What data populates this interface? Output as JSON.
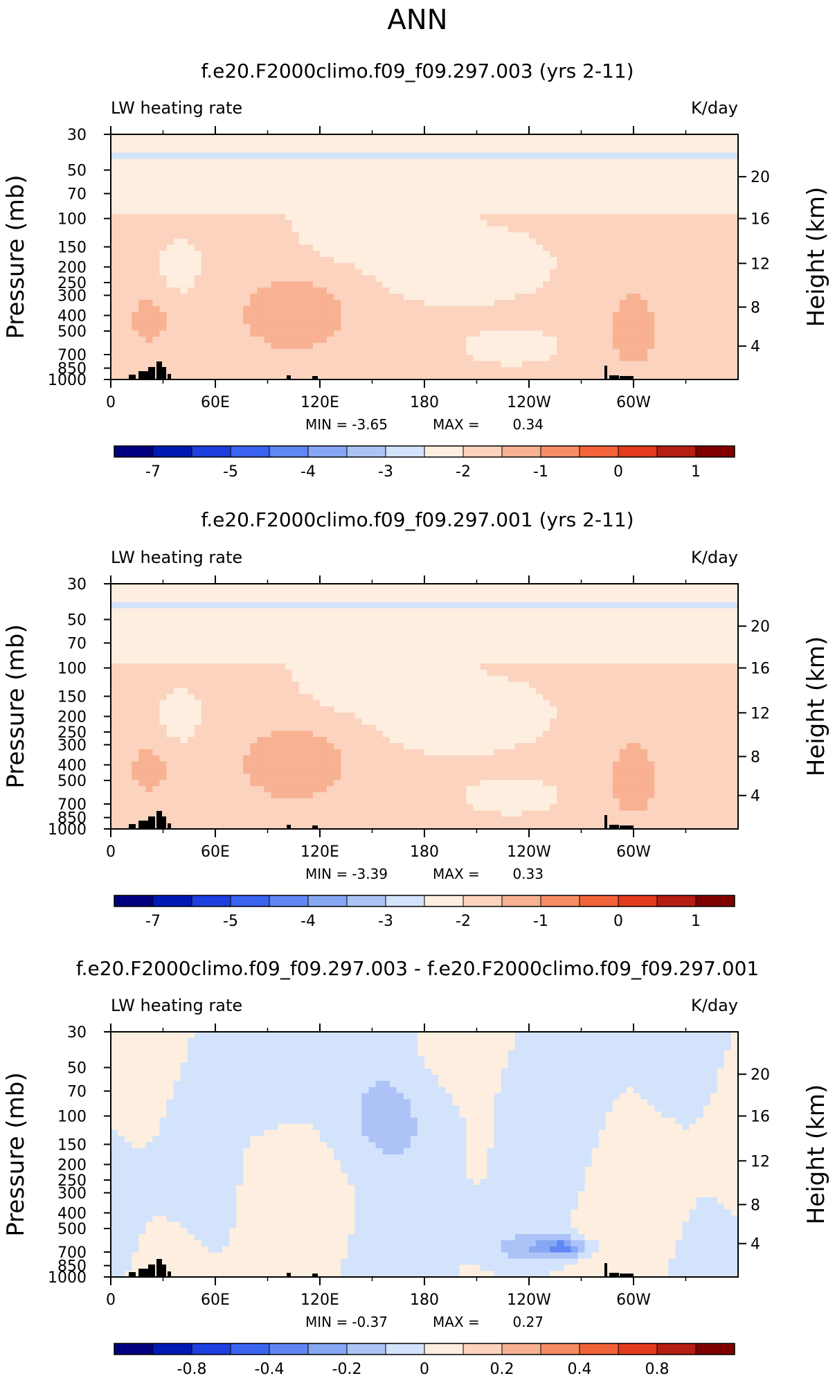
{
  "figure_title": "ANN",
  "colors": {
    "div": [
      "#000080",
      "#0019b3",
      "#1e3fe0",
      "#3a63f0",
      "#5f86f2",
      "#86a7f4",
      "#adc3f7",
      "#d2e3fb",
      "#fdeee0",
      "#fbd3be",
      "#f9b193",
      "#f68b64",
      "#f2633a",
      "#e33b1d",
      "#b51e12",
      "#800000"
    ]
  },
  "chart_data": [
    {
      "type": "contour",
      "title": "f.e20.F2000climo.f09_f09.297.003 (yrs 2-11)",
      "left_label": "LW heating rate",
      "right_label": "K/day",
      "ylabel": "Pressure (mb)",
      "ylabel_right": "Height (km)",
      "x_ticks": [
        "0",
        "60E",
        "120E",
        "180",
        "120W",
        "60W"
      ],
      "y_ticks": [
        "30",
        "50",
        "70",
        "100",
        "150",
        "200",
        "250",
        "300",
        "400",
        "500",
        "700",
        "850",
        "1000"
      ],
      "y_ticks_right": [
        "20",
        "16",
        "12",
        "8",
        "4"
      ],
      "min_label": "MIN =",
      "min_value": "-3.65",
      "max_label": "MAX =",
      "max_value": "0.34",
      "colorbar_labels": [
        "-7",
        "-5",
        "-4",
        "-3",
        "-2",
        "-1",
        "0",
        "1"
      ],
      "levels": [
        -8,
        -7,
        -6,
        -5,
        -4.5,
        -4,
        -3.5,
        -3,
        -2.5,
        -2,
        -1.5,
        -1,
        -0.5,
        0,
        0.5,
        1
      ],
      "field": "mean"
    },
    {
      "type": "contour",
      "title": "f.e20.F2000climo.f09_f09.297.001 (yrs 2-11)",
      "left_label": "LW heating rate",
      "right_label": "K/day",
      "ylabel": "Pressure (mb)",
      "ylabel_right": "Height (km)",
      "x_ticks": [
        "0",
        "60E",
        "120E",
        "180",
        "120W",
        "60W"
      ],
      "y_ticks": [
        "30",
        "50",
        "70",
        "100",
        "150",
        "200",
        "250",
        "300",
        "400",
        "500",
        "700",
        "850",
        "1000"
      ],
      "y_ticks_right": [
        "20",
        "16",
        "12",
        "8",
        "4"
      ],
      "min_label": "MIN =",
      "min_value": "-3.39",
      "max_label": "MAX =",
      "max_value": "0.33",
      "colorbar_labels": [
        "-7",
        "-5",
        "-4",
        "-3",
        "-2",
        "-1",
        "0",
        "1"
      ],
      "levels": [
        -8,
        -7,
        -6,
        -5,
        -4.5,
        -4,
        -3.5,
        -3,
        -2.5,
        -2,
        -1.5,
        -1,
        -0.5,
        0,
        0.5,
        1
      ],
      "field": "mean"
    },
    {
      "type": "contour",
      "title": "f.e20.F2000climo.f09_f09.297.003 - f.e20.F2000climo.f09_f09.297.001",
      "left_label": "LW heating rate",
      "right_label": "K/day",
      "ylabel": "Pressure (mb)",
      "ylabel_right": "Height (km)",
      "x_ticks": [
        "0",
        "60E",
        "120E",
        "180",
        "120W",
        "60W"
      ],
      "y_ticks": [
        "30",
        "50",
        "70",
        "100",
        "150",
        "200",
        "250",
        "300",
        "400",
        "500",
        "700",
        "850",
        "1000"
      ],
      "y_ticks_right": [
        "20",
        "16",
        "12",
        "8",
        "4"
      ],
      "min_label": "MIN =",
      "min_value": "-0.37",
      "max_label": "MAX =",
      "max_value": "0.27",
      "colorbar_labels": [
        "-0.8",
        "-0.4",
        "-0.2",
        "0",
        "0.2",
        "0.4",
        "0.8"
      ],
      "levels": [
        -1,
        -0.8,
        -0.6,
        -0.4,
        -0.3,
        -0.2,
        -0.1,
        0,
        0.1,
        0.2,
        0.3,
        0.4,
        0.6,
        0.8,
        1
      ],
      "field": "diff"
    }
  ]
}
